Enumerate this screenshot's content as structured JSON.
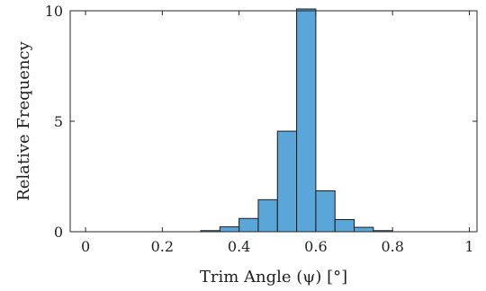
{
  "chart_data": {
    "type": "bar",
    "histogram": true,
    "xlabel": "Trim Angle (ψ) [°]",
    "ylabel": "Relative Frequency",
    "xlim": [
      -0.04,
      1.02
    ],
    "ylim": [
      0,
      10
    ],
    "xticks": [
      0,
      0.2,
      0.4,
      0.6,
      0.8,
      1
    ],
    "xtick_labels": [
      "0",
      "0.2",
      "0.4",
      "0.6",
      "0.8",
      "1"
    ],
    "yticks": [
      0,
      5,
      10
    ],
    "ytick_labels": [
      "0",
      "5",
      "10"
    ],
    "grid": false,
    "bar_color": "#5aa6d8",
    "bar_edge_color": "#1a1a1a",
    "bins": [
      {
        "x0": 0.3,
        "x1": 0.35,
        "value": 0.05
      },
      {
        "x0": 0.35,
        "x1": 0.4,
        "value": 0.22
      },
      {
        "x0": 0.4,
        "x1": 0.45,
        "value": 0.6
      },
      {
        "x0": 0.45,
        "x1": 0.5,
        "value": 1.45
      },
      {
        "x0": 0.5,
        "x1": 0.55,
        "value": 4.55
      },
      {
        "x0": 0.55,
        "x1": 0.6,
        "value": 10.1
      },
      {
        "x0": 0.6,
        "x1": 0.65,
        "value": 1.85
      },
      {
        "x0": 0.65,
        "x1": 0.7,
        "value": 0.55
      },
      {
        "x0": 0.7,
        "x1": 0.75,
        "value": 0.2
      },
      {
        "x0": 0.75,
        "x1": 0.8,
        "value": 0.05
      }
    ]
  }
}
